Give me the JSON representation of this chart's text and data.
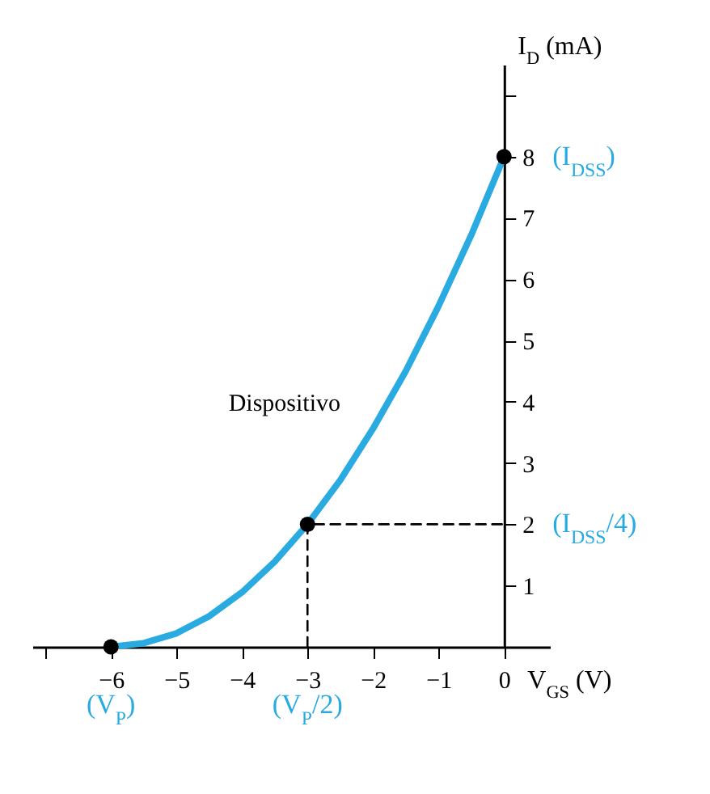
{
  "chart_data": {
    "type": "line",
    "xlabel": "V$_{GS}$ (V)",
    "ylabel": "I$_{D}$ (mA)",
    "xlim": [
      -7.2,
      0.7
    ],
    "ylim": [
      0,
      9.5
    ],
    "xticks": [
      {
        "value": -7,
        "label": null
      },
      {
        "value": -6,
        "label": "−6"
      },
      {
        "value": -5,
        "label": "−5"
      },
      {
        "value": -4,
        "label": "−4"
      },
      {
        "value": -3,
        "label": "−3"
      },
      {
        "value": -2,
        "label": "−2"
      },
      {
        "value": -1,
        "label": "−1"
      },
      0
    ],
    "yticks": [
      1,
      2,
      3,
      4,
      5,
      6,
      7,
      8,
      {
        "value": 9,
        "label": null
      }
    ],
    "grid": false,
    "series": [
      {
        "color": "#29abe2",
        "x": [
          -6,
          -5.5,
          -5,
          -4.5,
          -4,
          -3.5,
          -3,
          -2.5,
          -2,
          -1.5,
          -1,
          -0.5,
          0
        ],
        "values": [
          0,
          0.06,
          0.22,
          0.5,
          0.89,
          1.39,
          2,
          2.72,
          3.56,
          4.5,
          5.56,
          6.72,
          8
        ]
      },
      {
        "type": "scatter",
        "color": "#000000",
        "marker": "circle",
        "x": [
          -6,
          -3,
          0
        ],
        "values": [
          0,
          2,
          8
        ]
      },
      {
        "type": "line",
        "color": "#000000",
        "line_style": "dashed",
        "x": [
          -3,
          -3,
          0
        ],
        "values": [
          0,
          2,
          2
        ]
      }
    ],
    "annotations": [
      {
        "text": "Dispositivo",
        "x": -2.2,
        "y": 3.4
      },
      {
        "text": "(I$_{DSS}$)",
        "x": 0,
        "y": 8
      },
      {
        "text": "(I$_{DSS}$/4)",
        "x": 0,
        "y": 2
      },
      {
        "text": "(V$_{P}$)",
        "x": -6,
        "y": 0
      },
      {
        "text": "(V$_{P}$/2)",
        "x": -3,
        "y": 0
      }
    ]
  }
}
